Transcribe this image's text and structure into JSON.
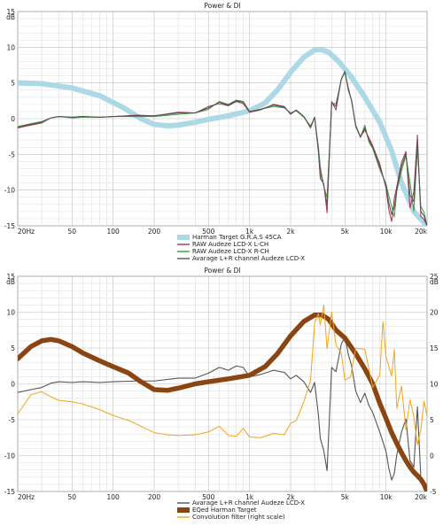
{
  "chart_data": [
    {
      "type": "line",
      "title": "Power & DI",
      "yunit": "dB",
      "xscale": "log",
      "xlim": [
        20,
        20000
      ],
      "ylim": [
        -15,
        15
      ],
      "xticks": [
        20,
        50,
        100,
        200,
        500,
        1000,
        2000,
        5000,
        10000,
        20000
      ],
      "xtick_labels": [
        "20Hz",
        "50",
        "100",
        "200",
        "500",
        "1k",
        "2k",
        "5k",
        "10k",
        "20k"
      ],
      "yticks": [
        -15,
        -10,
        -5,
        0,
        5,
        10,
        15
      ],
      "grid": true,
      "legend_position": "bottom-center",
      "series": [
        {
          "name": "Harman Target G.R.A.S 45CA",
          "color": "#add8e6",
          "x": [
            20,
            30,
            50,
            80,
            120,
            160,
            200,
            250,
            300,
            400,
            500,
            700,
            1000,
            1300,
            1600,
            2000,
            2500,
            3000,
            3300,
            3800,
            4500,
            5500,
            7000,
            9000,
            11000,
            13000,
            16000,
            20000
          ],
          "y": [
            5,
            4.9,
            4.3,
            3.2,
            1.5,
            0,
            -0.8,
            -1,
            -0.9,
            -0.5,
            -0.1,
            0.4,
            1.1,
            2.2,
            4,
            6.5,
            8.6,
            9.6,
            9.7,
            9.3,
            8,
            6,
            3,
            -0.5,
            -4.5,
            -9,
            -13,
            -15
          ]
        },
        {
          "name": "RAW Audeze LCD-X L-CH",
          "color": "#a8305a",
          "x": [
            20,
            25,
            30,
            35,
            40,
            50,
            60,
            80,
            100,
            150,
            200,
            300,
            400,
            500,
            600,
            700,
            800,
            900,
            1000,
            1200,
            1500,
            1800,
            2000,
            2200,
            2500,
            2800,
            3000,
            3200,
            3300,
            3500,
            3700,
            4000,
            4300,
            4700,
            5000,
            5300,
            5600,
            6000,
            6500,
            7000,
            7500,
            8000,
            9000,
            10000,
            10500,
            11000,
            11500,
            12000,
            13000,
            14000,
            15000,
            16000,
            17000,
            18000,
            19000,
            20000
          ],
          "y": [
            -1.3,
            -0.9,
            -0.6,
            0.1,
            0.3,
            0.2,
            0.3,
            0.2,
            0.3,
            0.5,
            0.4,
            0.9,
            0.8,
            1.7,
            2.1,
            1.8,
            2.4,
            2.1,
            0.9,
            1.2,
            2,
            1.7,
            0.6,
            1.2,
            0.3,
            -1.3,
            0.2,
            -4.8,
            -8.4,
            -9.1,
            -13.2,
            2.4,
            1.2,
            5.5,
            6.5,
            4.3,
            2.4,
            -0.9,
            -2.5,
            -1.6,
            -2.7,
            -3.8,
            -6.3,
            -9.7,
            -12.8,
            -14.4,
            -11.2,
            -9.5,
            -6.1,
            -4.6,
            -12.5,
            -10.2,
            -2.3,
            -13.7,
            -14.1,
            -15
          ]
        },
        {
          "name": "RAW Audeze LCD-X R-CH",
          "color": "#3aa23a",
          "x": [
            20,
            25,
            30,
            35,
            40,
            50,
            60,
            80,
            100,
            150,
            200,
            300,
            400,
            500,
            600,
            700,
            800,
            900,
            1000,
            1200,
            1500,
            1800,
            2000,
            2200,
            2500,
            2800,
            3000,
            3200,
            3300,
            3500,
            3700,
            4000,
            4300,
            4700,
            5000,
            5300,
            5600,
            6000,
            6500,
            7000,
            7500,
            8000,
            9000,
            10000,
            10500,
            11000,
            11500,
            12000,
            13000,
            14000,
            15000,
            16000,
            17000,
            18000,
            19000,
            20000
          ],
          "y": [
            -1.1,
            -0.7,
            -0.4,
            0.1,
            0.3,
            0.1,
            0.2,
            0.2,
            0.3,
            0.3,
            0.3,
            0.6,
            0.8,
            1.3,
            2.4,
            2,
            2.6,
            2.4,
            1,
            1.3,
            1.7,
            1.5,
            0.8,
            1.1,
            0.2,
            -1,
            0.1,
            -4,
            -6.7,
            -9.5,
            -11,
            2.1,
            2.1,
            5.4,
            6.6,
            3.9,
            2.6,
            -1.1,
            -2.6,
            -0.9,
            -3.3,
            -4.2,
            -7.1,
            -9.1,
            -10.8,
            -12.3,
            -13.8,
            -10.2,
            -7.3,
            -5.2,
            -8.9,
            -13,
            -4.1,
            -12.3,
            -13.1,
            -15
          ]
        },
        {
          "name": "Avarage L+R channel Audeze LCD-X",
          "color": "#555555",
          "x": [
            20,
            25,
            30,
            35,
            40,
            50,
            60,
            80,
            100,
            150,
            200,
            300,
            400,
            500,
            600,
            700,
            800,
            900,
            1000,
            1200,
            1500,
            1800,
            2000,
            2200,
            2500,
            2800,
            3000,
            3200,
            3300,
            3500,
            3700,
            4000,
            4300,
            4700,
            5000,
            5300,
            5600,
            6000,
            6500,
            7000,
            7500,
            8000,
            9000,
            10000,
            10500,
            11000,
            11500,
            12000,
            13000,
            14000,
            15000,
            16000,
            17000,
            18000,
            19000,
            20000
          ],
          "y": [
            -1.2,
            -0.8,
            -0.5,
            0.1,
            0.3,
            0.2,
            0.3,
            0.2,
            0.3,
            0.4,
            0.4,
            0.8,
            0.8,
            1.5,
            2.3,
            1.9,
            2.5,
            2.3,
            1,
            1.3,
            1.9,
            1.6,
            0.7,
            1.2,
            0.3,
            -1.2,
            0.2,
            -4.4,
            -7.6,
            -9.3,
            -12.1,
            2.3,
            1.7,
            5.5,
            6.6,
            4.1,
            2.5,
            -1,
            -2.6,
            -1.3,
            -3,
            -4,
            -6.7,
            -9.4,
            -11.8,
            -13.4,
            -12.5,
            -9.9,
            -6.7,
            -4.9,
            -10.7,
            -11.6,
            -3.2,
            -13,
            -13.6,
            -15
          ]
        }
      ]
    },
    {
      "type": "line",
      "title": "Power & DI",
      "yunit": "dB",
      "yunit_right": "dB",
      "xscale": "log",
      "xlim": [
        20,
        20000
      ],
      "ylim": [
        -15,
        15
      ],
      "ylim_right": [
        -5,
        25
      ],
      "xticks": [
        20,
        50,
        100,
        200,
        500,
        1000,
        2000,
        5000,
        10000,
        20000
      ],
      "xtick_labels": [
        "20Hz",
        "50",
        "100",
        "200",
        "500",
        "1k",
        "2k",
        "5k",
        "10k",
        "20k"
      ],
      "yticks": [
        -15,
        -10,
        -5,
        0,
        5,
        10,
        15
      ],
      "yticks_right": [
        -5,
        0,
        5,
        10,
        15,
        20,
        25
      ],
      "grid": true,
      "legend_position": "bottom-center",
      "series": [
        {
          "name": "Avarage L+R channel Audeze LCD-X",
          "color": "#555555",
          "x": [
            20,
            25,
            30,
            35,
            40,
            50,
            60,
            80,
            100,
            150,
            200,
            300,
            400,
            500,
            600,
            700,
            800,
            900,
            1000,
            1200,
            1500,
            1800,
            2000,
            2200,
            2500,
            2800,
            3000,
            3200,
            3300,
            3500,
            3700,
            4000,
            4300,
            4700,
            5000,
            5300,
            5600,
            6000,
            6500,
            7000,
            7500,
            8000,
            9000,
            10000,
            10500,
            11000,
            11500,
            12000,
            13000,
            14000,
            15000,
            16000,
            17000,
            18000,
            19000,
            20000
          ],
          "y": [
            -1.2,
            -0.8,
            -0.5,
            0.1,
            0.3,
            0.2,
            0.3,
            0.2,
            0.3,
            0.4,
            0.4,
            0.8,
            0.8,
            1.5,
            2.3,
            1.9,
            2.5,
            2.3,
            1,
            1.3,
            1.9,
            1.6,
            0.7,
            1.2,
            0.3,
            -1.2,
            0.2,
            -4.4,
            -7.6,
            -9.3,
            -12.1,
            2.3,
            1.7,
            5.5,
            6.6,
            4.1,
            2.5,
            -1,
            -2.6,
            -1.3,
            -3,
            -4,
            -6.7,
            -9.4,
            -11.8,
            -13.4,
            -12.5,
            -9.9,
            -6.7,
            -4.9,
            -10.7,
            -11.6,
            -3.2,
            -13,
            -13.6,
            -15
          ]
        },
        {
          "name": "EQed Harman Target",
          "color": "#8b4513",
          "x": [
            20,
            25,
            30,
            35,
            40,
            50,
            60,
            80,
            100,
            130,
            160,
            200,
            250,
            300,
            400,
            500,
            700,
            1000,
            1300,
            1600,
            2000,
            2500,
            3000,
            3400,
            3800,
            4300,
            5000,
            6000,
            7000,
            8000,
            9000,
            10000,
            11000,
            12000,
            13000,
            14000,
            15000,
            16000,
            17000,
            18000,
            19000,
            20000
          ],
          "y": [
            3.5,
            5.2,
            6,
            6.2,
            6,
            5.2,
            4.3,
            3.2,
            2.4,
            1.5,
            0.3,
            -0.8,
            -0.9,
            -0.6,
            0,
            0.3,
            0.7,
            1.2,
            2.4,
            4.2,
            6.7,
            8.7,
            9.6,
            9.6,
            9,
            7.5,
            6.4,
            4.2,
            2.1,
            0,
            -2.7,
            -4.8,
            -6.8,
            -8.3,
            -9.6,
            -10.7,
            -11.6,
            -12.3,
            -12.8,
            -13.3,
            -14,
            -15
          ]
        },
        {
          "name": "Convolution filter (right scale)",
          "color": "#f2a51a",
          "axis": "right",
          "x": [
            20,
            25,
            30,
            35,
            40,
            50,
            60,
            80,
            100,
            130,
            160,
            200,
            250,
            300,
            400,
            500,
            600,
            700,
            800,
            900,
            1000,
            1200,
            1500,
            1800,
            2000,
            2200,
            2500,
            2800,
            3000,
            3200,
            3300,
            3500,
            3700,
            4000,
            4300,
            4700,
            5000,
            5500,
            6000,
            7000,
            8000,
            9000,
            9500,
            10000,
            11000,
            11500,
            12000,
            13000,
            14000,
            15000,
            16000,
            17000,
            18000,
            19000,
            20000
          ],
          "y": [
            5.8,
            8.5,
            8.9,
            8.2,
            7.7,
            7.5,
            7.2,
            6.4,
            5.6,
            4.9,
            4.1,
            3.2,
            2.9,
            2.8,
            2.9,
            3.3,
            4.1,
            2.8,
            2.7,
            3.8,
            2.6,
            2.5,
            3.1,
            2.9,
            4.5,
            4.9,
            7.5,
            10.5,
            18.5,
            19.8,
            18.2,
            21,
            14.9,
            20,
            15.4,
            14.3,
            10.5,
            11,
            15,
            14.8,
            9.5,
            11.2,
            18.7,
            13.8,
            11.1,
            14.8,
            6.6,
            9.7,
            3.6,
            7.8,
            5.4,
            1.5,
            3.6,
            7.6,
            5.5
          ]
        }
      ]
    }
  ]
}
